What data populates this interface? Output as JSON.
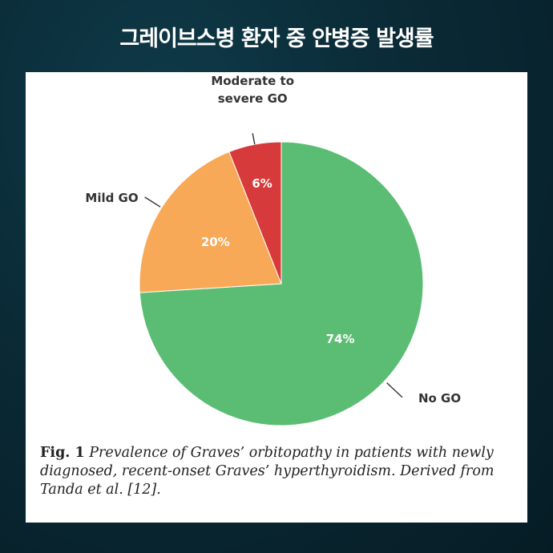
{
  "headline": "그레이브스병 환자 중 안병증 발생률",
  "caption": {
    "fig_label": "Fig. 1",
    "text": "Prevalence of Graves’ orbitopathy in patients with newly diagnosed, recent-onset Graves’ hyperthyroidism. Derived from Tanda et al. [12]."
  },
  "colors": {
    "no_go": "#5bbd73",
    "mild_go": "#f7a957",
    "moderate_go": "#d63a3a"
  },
  "chart_data": {
    "type": "pie",
    "title": "",
    "slices": [
      {
        "category_lines": [
          "No GO"
        ],
        "value": 74,
        "label": "74%",
        "color": "#5bbd73"
      },
      {
        "category_lines": [
          "Mild GO"
        ],
        "value": 20,
        "label": "20%",
        "color": "#f7a957"
      },
      {
        "category_lines": [
          "Moderate to",
          "severe GO"
        ],
        "value": 6,
        "label": "6%",
        "color": "#d63a3a"
      }
    ],
    "start": "12 o'clock",
    "direction": "clockwise"
  }
}
